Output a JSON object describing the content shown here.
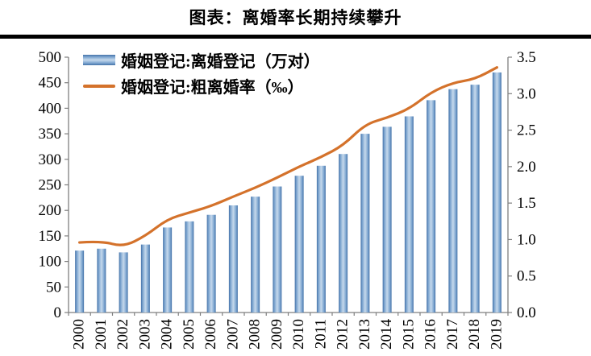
{
  "header": {
    "title": "图表：离婚率长期持续攀升"
  },
  "legend": {
    "bars_label": "婚姻登记:离婚登记（万对）",
    "line_label": "婚姻登记:粗离婚率（‰）"
  },
  "colors": {
    "bar_dark": "#4472a8",
    "bar_mid": "#7fa7d1",
    "bar_light": "#c6d9ec",
    "line": "#d4722b",
    "axis": "#7f7f7f",
    "text": "#000000",
    "rule": "#000000"
  },
  "chart_data": {
    "type": "bar",
    "title": "图表：离婚率长期持续攀升",
    "categories": [
      "2000",
      "2001",
      "2002",
      "2003",
      "2004",
      "2005",
      "2006",
      "2007",
      "2008",
      "2009",
      "2010",
      "2011",
      "2012",
      "2013",
      "2014",
      "2015",
      "2016",
      "2017",
      "2018",
      "2019"
    ],
    "series": [
      {
        "name": "婚姻登记:离婚登记（万对）",
        "type": "bar",
        "axis": "left",
        "values": [
          121.3,
          125.0,
          117.7,
          133.1,
          166.5,
          178.5,
          191.3,
          209.8,
          226.9,
          246.8,
          267.8,
          287.4,
          310.4,
          350.0,
          363.7,
          384.1,
          415.8,
          437.4,
          446.1,
          470.1
        ]
      },
      {
        "name": "婚姻登记:粗离婚率（‰）",
        "type": "line",
        "axis": "right",
        "values": [
          0.96,
          0.98,
          0.9,
          1.05,
          1.28,
          1.37,
          1.46,
          1.59,
          1.71,
          1.85,
          2.0,
          2.13,
          2.29,
          2.58,
          2.67,
          2.79,
          3.02,
          3.15,
          3.2,
          3.36
        ]
      }
    ],
    "left_axis": {
      "min": 0,
      "max": 500,
      "step": 50,
      "ticks": [
        "0",
        "50",
        "100",
        "150",
        "200",
        "250",
        "300",
        "350",
        "400",
        "450",
        "500"
      ]
    },
    "right_axis": {
      "min": 0,
      "max": 3.5,
      "step": 0.5,
      "ticks": [
        "0.0",
        "0.5",
        "1.0",
        "1.5",
        "2.0",
        "2.5",
        "3.0",
        "3.5"
      ]
    },
    "legend_position": "top-left",
    "grid": false
  }
}
